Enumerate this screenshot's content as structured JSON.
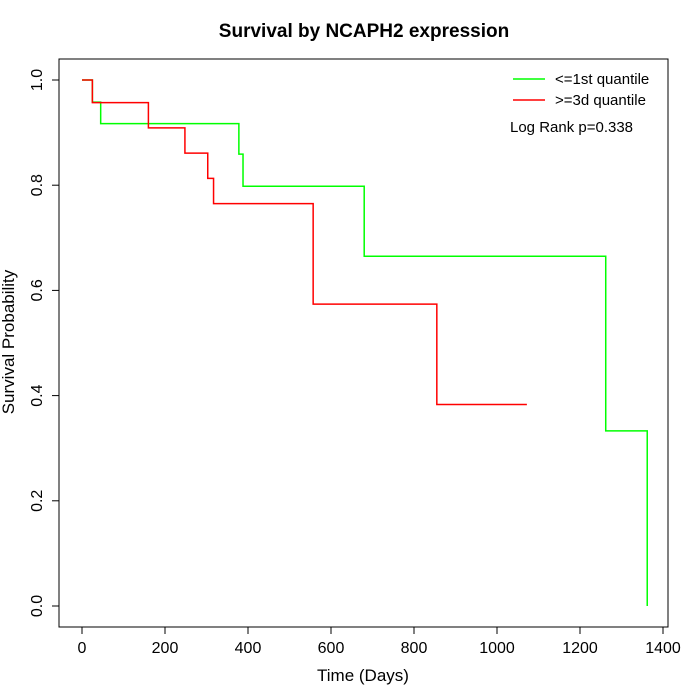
{
  "chart_data": {
    "type": "line",
    "step": true,
    "title": "Survival by NCAPH2 expression",
    "xlabel": "Time (Days)",
    "ylabel": "Survival Probability",
    "xlim": [
      0,
      1400
    ],
    "ylim": [
      0,
      1
    ],
    "x_ticks": [
      0,
      200,
      400,
      600,
      800,
      1000,
      1200,
      1400
    ],
    "y_ticks": [
      0.0,
      0.2,
      0.4,
      0.6,
      0.8,
      1.0
    ],
    "x_tick_labels": [
      "0",
      "200",
      "400",
      "600",
      "800",
      "1000",
      "1200",
      "1400"
    ],
    "y_tick_labels": [
      "0.0",
      "0.2",
      "0.4",
      "0.6",
      "0.8",
      "1.0"
    ],
    "grid": false,
    "legend_position": "top-right",
    "annotation": "Log Rank p=0.338",
    "series": [
      {
        "name": "<=1st quantile",
        "color": "#00ff00",
        "points": [
          [
            0,
            1.0
          ],
          [
            25,
            0.958
          ],
          [
            45,
            0.917
          ],
          [
            378,
            0.859
          ],
          [
            388,
            0.798
          ],
          [
            680,
            0.665
          ],
          [
            1262,
            0.333
          ],
          [
            1362,
            0.0
          ]
        ],
        "end_x": 1362
      },
      {
        "name": ">=3d quantile",
        "color": "#ff0000",
        "points": [
          [
            0,
            1.0
          ],
          [
            25,
            0.957
          ],
          [
            160,
            0.909
          ],
          [
            248,
            0.861
          ],
          [
            303,
            0.813
          ],
          [
            317,
            0.765
          ],
          [
            557,
            0.574
          ],
          [
            855,
            0.383
          ]
        ],
        "end_x": 1072
      }
    ]
  }
}
